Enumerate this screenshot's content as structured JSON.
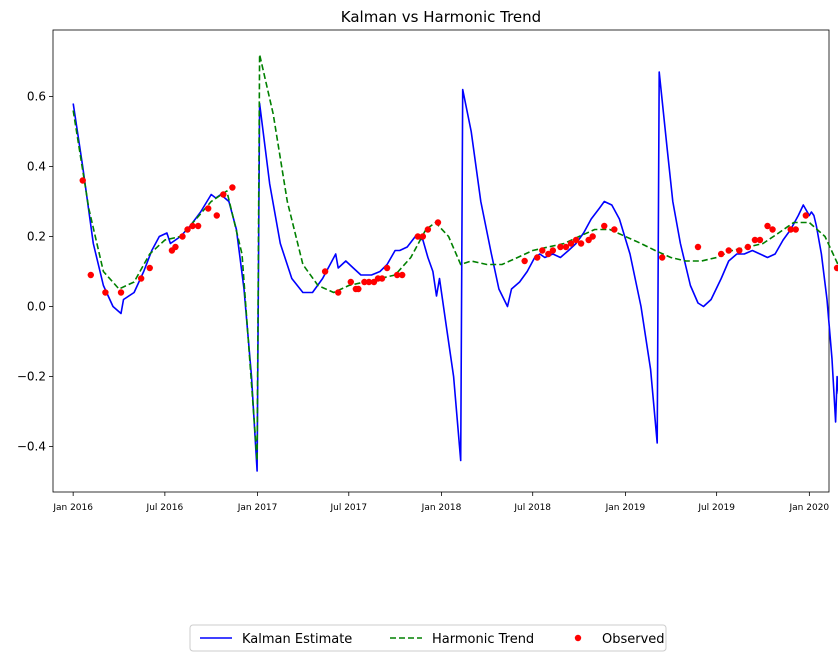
{
  "chart_data": {
    "type": "line",
    "title": "Kalman vs Harmonic Trend",
    "xlabel": "",
    "ylabel": "",
    "xlim": [
      "2015-11-22",
      "2020-02-09"
    ],
    "ylim": [
      -0.53,
      0.79
    ],
    "x_ticks": [
      {
        "date": "2016-01-01",
        "label": "Jan 2016"
      },
      {
        "date": "2016-07-01",
        "label": "Jul 2016"
      },
      {
        "date": "2017-01-01",
        "label": "Jan 2017"
      },
      {
        "date": "2017-07-01",
        "label": "Jul 2017"
      },
      {
        "date": "2018-01-01",
        "label": "Jan 2018"
      },
      {
        "date": "2018-07-01",
        "label": "Jul 2018"
      },
      {
        "date": "2019-01-01",
        "label": "Jan 2019"
      },
      {
        "date": "2019-07-01",
        "label": "Jul 2019"
      },
      {
        "date": "2020-01-01",
        "label": "Jan 2020"
      }
    ],
    "y_ticks": [
      {
        "value": -0.4,
        "label": "−0.4"
      },
      {
        "value": -0.2,
        "label": "−0.2"
      },
      {
        "value": 0.0,
        "label": "0.0"
      },
      {
        "value": 0.2,
        "label": "0.2"
      },
      {
        "value": 0.4,
        "label": "0.4"
      },
      {
        "value": 0.6,
        "label": "0.6"
      }
    ],
    "grid": false,
    "legend_position": "bottom-center",
    "series": [
      {
        "name": "Kalman Estimate",
        "style": "solid",
        "color": "#0000ff",
        "points": [
          [
            "2016-01-01",
            0.58
          ],
          [
            "2016-01-20",
            0.4
          ],
          [
            "2016-02-10",
            0.18
          ],
          [
            "2016-03-01",
            0.06
          ],
          [
            "2016-03-20",
            0.0
          ],
          [
            "2016-04-05",
            -0.02
          ],
          [
            "2016-04-10",
            0.02
          ],
          [
            "2016-05-01",
            0.04
          ],
          [
            "2016-05-20",
            0.1
          ],
          [
            "2016-06-05",
            0.16
          ],
          [
            "2016-06-20",
            0.2
          ],
          [
            "2016-07-05",
            0.21
          ],
          [
            "2016-07-12",
            0.18
          ],
          [
            "2016-08-01",
            0.2
          ],
          [
            "2016-08-20",
            0.23
          ],
          [
            "2016-09-10",
            0.27
          ],
          [
            "2016-10-01",
            0.32
          ],
          [
            "2016-10-10",
            0.31
          ],
          [
            "2016-10-20",
            0.32
          ],
          [
            "2016-11-05",
            0.3
          ],
          [
            "2016-11-20",
            0.22
          ],
          [
            "2016-12-05",
            0.05
          ],
          [
            "2016-12-20",
            -0.2
          ],
          [
            "2016-12-31",
            -0.47
          ],
          [
            "2017-01-05",
            0.58
          ],
          [
            "2017-01-25",
            0.35
          ],
          [
            "2017-02-15",
            0.18
          ],
          [
            "2017-03-10",
            0.08
          ],
          [
            "2017-04-01",
            0.04
          ],
          [
            "2017-04-20",
            0.04
          ],
          [
            "2017-05-10",
            0.08
          ],
          [
            "2017-05-25",
            0.12
          ],
          [
            "2017-06-05",
            0.15
          ],
          [
            "2017-06-10",
            0.11
          ],
          [
            "2017-06-25",
            0.13
          ],
          [
            "2017-07-10",
            0.11
          ],
          [
            "2017-07-25",
            0.09
          ],
          [
            "2017-08-15",
            0.09
          ],
          [
            "2017-09-01",
            0.1
          ],
          [
            "2017-09-15",
            0.12
          ],
          [
            "2017-10-01",
            0.16
          ],
          [
            "2017-10-10",
            0.16
          ],
          [
            "2017-10-25",
            0.17
          ],
          [
            "2017-11-10",
            0.2
          ],
          [
            "2017-11-25",
            0.19
          ],
          [
            "2017-12-05",
            0.14
          ],
          [
            "2017-12-15",
            0.1
          ],
          [
            "2017-12-22",
            0.03
          ],
          [
            "2017-12-28",
            0.08
          ],
          [
            "2018-01-10",
            -0.05
          ],
          [
            "2018-01-25",
            -0.2
          ],
          [
            "2018-02-08",
            -0.44
          ],
          [
            "2018-02-12",
            0.62
          ],
          [
            "2018-03-01",
            0.5
          ],
          [
            "2018-03-20",
            0.3
          ],
          [
            "2018-04-10",
            0.15
          ],
          [
            "2018-04-25",
            0.05
          ],
          [
            "2018-05-12",
            0.0
          ],
          [
            "2018-05-20",
            0.05
          ],
          [
            "2018-06-05",
            0.07
          ],
          [
            "2018-06-20",
            0.1
          ],
          [
            "2018-07-05",
            0.14
          ],
          [
            "2018-07-15",
            0.15
          ],
          [
            "2018-07-25",
            0.14
          ],
          [
            "2018-08-10",
            0.15
          ],
          [
            "2018-08-25",
            0.14
          ],
          [
            "2018-09-10",
            0.16
          ],
          [
            "2018-09-25",
            0.18
          ],
          [
            "2018-10-10",
            0.21
          ],
          [
            "2018-10-25",
            0.25
          ],
          [
            "2018-11-10",
            0.28
          ],
          [
            "2018-11-20",
            0.3
          ],
          [
            "2018-12-05",
            0.29
          ],
          [
            "2018-12-20",
            0.25
          ],
          [
            "2019-01-10",
            0.15
          ],
          [
            "2019-02-01",
            0.0
          ],
          [
            "2019-02-20",
            -0.18
          ],
          [
            "2019-03-05",
            -0.39
          ],
          [
            "2019-03-09",
            0.67
          ],
          [
            "2019-03-25",
            0.45
          ],
          [
            "2019-04-05",
            0.3
          ],
          [
            "2019-04-20",
            0.18
          ],
          [
            "2019-05-10",
            0.06
          ],
          [
            "2019-05-25",
            0.01
          ],
          [
            "2019-06-05",
            0.0
          ],
          [
            "2019-06-20",
            0.02
          ],
          [
            "2019-07-10",
            0.08
          ],
          [
            "2019-07-25",
            0.13
          ],
          [
            "2019-08-10",
            0.15
          ],
          [
            "2019-08-25",
            0.15
          ],
          [
            "2019-09-10",
            0.16
          ],
          [
            "2019-09-25",
            0.15
          ],
          [
            "2019-10-10",
            0.14
          ],
          [
            "2019-10-25",
            0.15
          ],
          [
            "2019-11-10",
            0.19
          ],
          [
            "2019-11-25",
            0.22
          ],
          [
            "2019-12-10",
            0.26
          ],
          [
            "2019-12-20",
            0.29
          ],
          [
            "2019-12-28",
            0.27
          ],
          [
            "2020-01-01",
            0.26
          ],
          [
            "2020-01-05",
            0.27
          ],
          [
            "2020-01-10",
            0.26
          ],
          [
            "2020-01-15",
            0.23
          ],
          [
            "2020-01-25",
            0.15
          ],
          [
            "2020-02-05",
            0.02
          ],
          [
            "2020-02-15",
            -0.15
          ],
          [
            "2020-02-22",
            -0.33
          ],
          [
            "2020-02-25",
            -0.2
          ],
          [
            "2020-02-28",
            -0.25
          ]
        ]
      },
      {
        "name": "Harmonic Trend",
        "style": "dashed",
        "color": "#008000",
        "points": [
          [
            "2016-01-01",
            0.56
          ],
          [
            "2016-02-01",
            0.28
          ],
          [
            "2016-03-01",
            0.1
          ],
          [
            "2016-04-01",
            0.05
          ],
          [
            "2016-05-01",
            0.07
          ],
          [
            "2016-06-01",
            0.15
          ],
          [
            "2016-07-01",
            0.19
          ],
          [
            "2016-08-01",
            0.2
          ],
          [
            "2016-09-01",
            0.25
          ],
          [
            "2016-10-01",
            0.3
          ],
          [
            "2016-11-01",
            0.33
          ],
          [
            "2016-12-01",
            0.15
          ],
          [
            "2016-12-31",
            -0.44
          ],
          [
            "2017-01-05",
            0.72
          ],
          [
            "2017-02-01",
            0.55
          ],
          [
            "2017-03-01",
            0.3
          ],
          [
            "2017-04-01",
            0.12
          ],
          [
            "2017-05-01",
            0.06
          ],
          [
            "2017-06-01",
            0.04
          ],
          [
            "2017-07-01",
            0.06
          ],
          [
            "2017-08-01",
            0.07
          ],
          [
            "2017-09-01",
            0.08
          ],
          [
            "2017-10-01",
            0.09
          ],
          [
            "2017-11-01",
            0.14
          ],
          [
            "2017-12-01",
            0.22
          ],
          [
            "2017-12-20",
            0.24
          ],
          [
            "2018-01-15",
            0.2
          ],
          [
            "2018-02-08",
            0.12
          ],
          [
            "2018-03-01",
            0.13
          ],
          [
            "2018-04-01",
            0.12
          ],
          [
            "2018-05-01",
            0.12
          ],
          [
            "2018-06-01",
            0.14
          ],
          [
            "2018-07-01",
            0.16
          ],
          [
            "2018-08-01",
            0.17
          ],
          [
            "2018-09-01",
            0.18
          ],
          [
            "2018-10-01",
            0.2
          ],
          [
            "2018-11-01",
            0.22
          ],
          [
            "2018-12-01",
            0.22
          ],
          [
            "2019-01-01",
            0.2
          ],
          [
            "2019-02-01",
            0.18
          ],
          [
            "2019-03-01",
            0.16
          ],
          [
            "2019-04-01",
            0.14
          ],
          [
            "2019-05-01",
            0.13
          ],
          [
            "2019-06-01",
            0.13
          ],
          [
            "2019-07-01",
            0.14
          ],
          [
            "2019-08-01",
            0.16
          ],
          [
            "2019-09-01",
            0.17
          ],
          [
            "2019-10-01",
            0.18
          ],
          [
            "2019-11-01",
            0.21
          ],
          [
            "2019-12-01",
            0.24
          ],
          [
            "2020-01-01",
            0.24
          ],
          [
            "2020-02-01",
            0.2
          ],
          [
            "2020-03-01",
            0.11
          ]
        ]
      },
      {
        "name": "Observed",
        "style": "markers",
        "color": "#ff0000",
        "points": [
          [
            "2016-01-20",
            0.36
          ],
          [
            "2016-02-05",
            0.09
          ],
          [
            "2016-03-05",
            0.04
          ],
          [
            "2016-04-05",
            0.04
          ],
          [
            "2016-05-15",
            0.08
          ],
          [
            "2016-06-01",
            0.11
          ],
          [
            "2016-07-15",
            0.16
          ],
          [
            "2016-07-22",
            0.17
          ],
          [
            "2016-08-05",
            0.2
          ],
          [
            "2016-08-15",
            0.22
          ],
          [
            "2016-08-25",
            0.23
          ],
          [
            "2016-09-05",
            0.23
          ],
          [
            "2016-09-25",
            0.28
          ],
          [
            "2016-10-12",
            0.26
          ],
          [
            "2016-10-25",
            0.32
          ],
          [
            "2016-11-12",
            0.34
          ],
          [
            "2017-05-15",
            0.1
          ],
          [
            "2017-06-10",
            0.04
          ],
          [
            "2017-07-05",
            0.07
          ],
          [
            "2017-07-15",
            0.05
          ],
          [
            "2017-07-20",
            0.05
          ],
          [
            "2017-08-01",
            0.07
          ],
          [
            "2017-08-10",
            0.07
          ],
          [
            "2017-08-20",
            0.07
          ],
          [
            "2017-08-28",
            0.08
          ],
          [
            "2017-09-05",
            0.08
          ],
          [
            "2017-09-15",
            0.11
          ],
          [
            "2017-10-05",
            0.09
          ],
          [
            "2017-10-15",
            0.09
          ],
          [
            "2017-11-15",
            0.2
          ],
          [
            "2017-11-25",
            0.2
          ],
          [
            "2017-12-05",
            0.22
          ],
          [
            "2017-12-25",
            0.24
          ],
          [
            "2018-06-15",
            0.13
          ],
          [
            "2018-07-10",
            0.14
          ],
          [
            "2018-07-20",
            0.16
          ],
          [
            "2018-08-01",
            0.15
          ],
          [
            "2018-08-10",
            0.16
          ],
          [
            "2018-08-25",
            0.17
          ],
          [
            "2018-09-05",
            0.17
          ],
          [
            "2018-09-15",
            0.18
          ],
          [
            "2018-09-25",
            0.19
          ],
          [
            "2018-10-05",
            0.18
          ],
          [
            "2018-10-20",
            0.19
          ],
          [
            "2018-10-28",
            0.2
          ],
          [
            "2018-11-20",
            0.23
          ],
          [
            "2018-12-10",
            0.22
          ],
          [
            "2019-03-15",
            0.14
          ],
          [
            "2019-05-25",
            0.17
          ],
          [
            "2019-07-10",
            0.15
          ],
          [
            "2019-07-25",
            0.16
          ],
          [
            "2019-08-15",
            0.16
          ],
          [
            "2019-09-01",
            0.17
          ],
          [
            "2019-09-15",
            0.19
          ],
          [
            "2019-09-25",
            0.19
          ],
          [
            "2019-10-10",
            0.23
          ],
          [
            "2019-10-20",
            0.22
          ],
          [
            "2019-11-25",
            0.22
          ],
          [
            "2019-12-05",
            0.22
          ],
          [
            "2019-12-25",
            0.26
          ],
          [
            "2020-02-25",
            0.11
          ]
        ]
      }
    ]
  }
}
